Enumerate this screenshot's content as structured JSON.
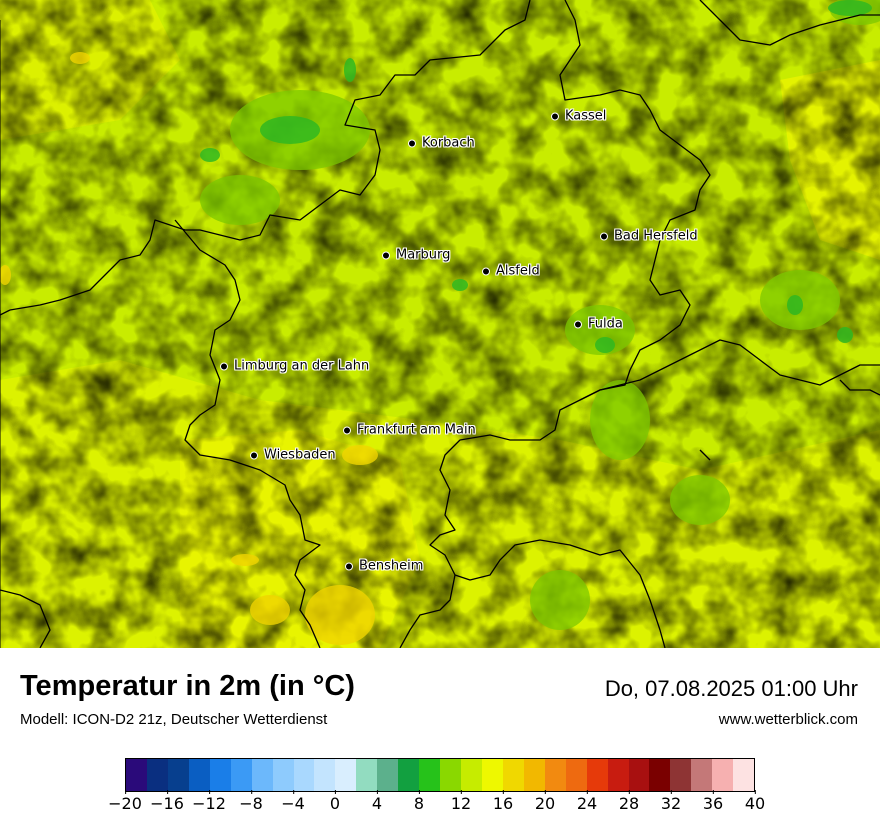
{
  "map": {
    "cities": [
      {
        "name": "Kassel"
      },
      {
        "name": "Korbach"
      },
      {
        "name": "Bad Hersfeld"
      },
      {
        "name": "Marburg"
      },
      {
        "name": "Alsfeld"
      },
      {
        "name": "Fulda"
      },
      {
        "name": "Limburg an der Lahn"
      },
      {
        "name": "Frankfurt am Main"
      },
      {
        "name": "Wiesbaden"
      },
      {
        "name": "Bensheim"
      }
    ]
  },
  "footer": {
    "title": "Temperatur in 2m (in °C)",
    "model": "Modell: ICON-D2 21z, Deutscher Wetterdienst",
    "datetime": "Do, 07.08.2025 01:00 Uhr",
    "website": "www.wetterblick.com"
  },
  "legend": {
    "colors": [
      "#2a0a7a",
      "#0a2f80",
      "#073f8e",
      "#0a5ec2",
      "#1a7ee8",
      "#3b9af5",
      "#6cb8fb",
      "#8ecbfd",
      "#a9d8fe",
      "#c3e4fe",
      "#d9eefe",
      "#92dcc0",
      "#5cb08c",
      "#12a040",
      "#26c21a",
      "#8ad800",
      "#c6ec00",
      "#eef800",
      "#f0d800",
      "#f2b800",
      "#f28a10",
      "#ee6a10",
      "#e63a0a",
      "#c81c10",
      "#a81010",
      "#7a0000",
      "#8e3434",
      "#c47878",
      "#f6b0b0",
      "#fde2e2"
    ],
    "ticks": [
      "−20",
      "−16",
      "−12",
      "−8",
      "−4",
      "0",
      "4",
      "8",
      "12",
      "16",
      "20",
      "24",
      "28",
      "32",
      "36",
      "40"
    ],
    "min": -20,
    "max": 40
  }
}
